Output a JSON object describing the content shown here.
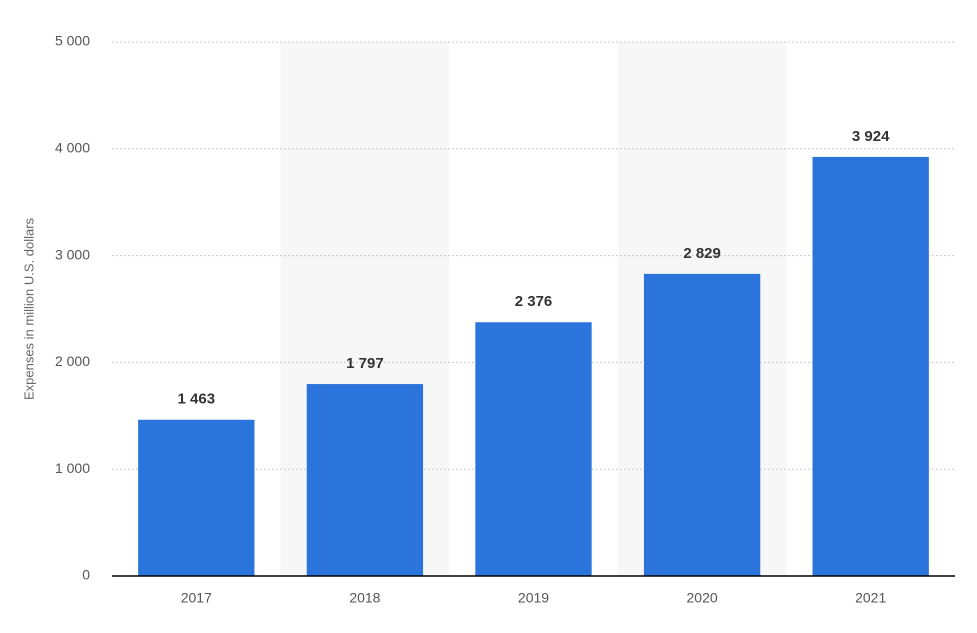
{
  "chart_data": {
    "type": "bar",
    "y_label": "Expenses in million U.S. dollars",
    "categories": [
      "2017",
      "2018",
      "2019",
      "2020",
      "2021"
    ],
    "values": [
      1463,
      1797,
      2376,
      2829,
      3924
    ],
    "value_labels": [
      "1 463",
      "1 797",
      "2 376",
      "2 829",
      "3 924"
    ],
    "color": "#2a74db",
    "ylim": [
      0,
      5000
    ],
    "yticks": [
      0,
      {
        "value": 1000,
        "label": "1 000"
      },
      {
        "value": 2000,
        "label": "2 000"
      },
      {
        "value": 3000,
        "label": "3 000"
      },
      {
        "value": 4000,
        "label": "4 000"
      },
      {
        "value": 5000,
        "label": "5 000"
      }
    ],
    "grid": true
  }
}
